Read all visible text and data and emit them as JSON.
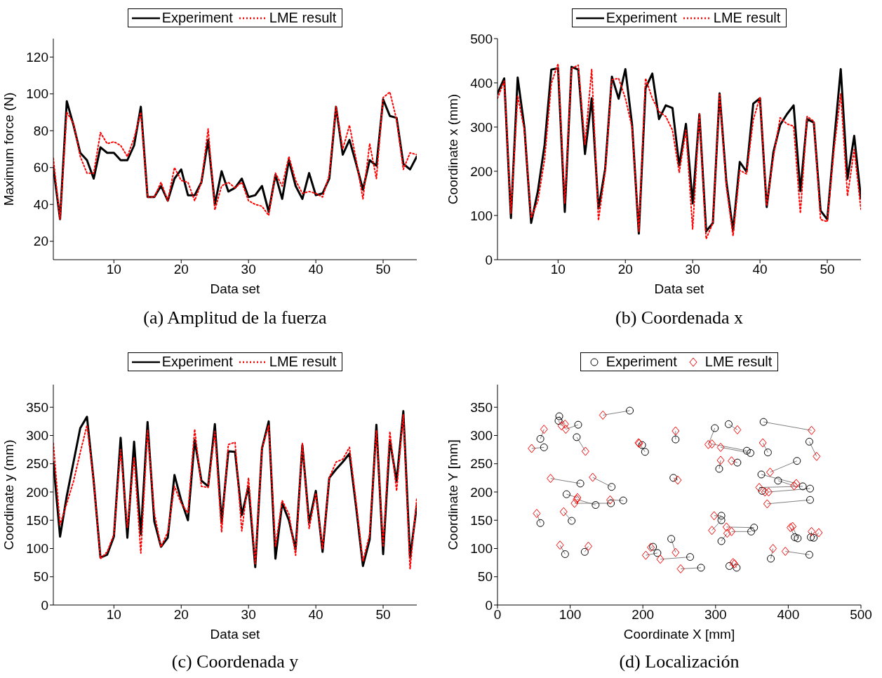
{
  "chart_data": [
    {
      "type": "line",
      "title": "(a) Amplitud de la fuerza",
      "xlabel": "Data set",
      "ylabel": "Maximum force (N)",
      "x": [
        1,
        2,
        3,
        4,
        5,
        6,
        7,
        8,
        9,
        10,
        11,
        12,
        13,
        14,
        15,
        16,
        17,
        18,
        19,
        20,
        21,
        22,
        23,
        24,
        25,
        26,
        27,
        28,
        29,
        30,
        31,
        32,
        33,
        34,
        35,
        36,
        37,
        38,
        39,
        40,
        41,
        42,
        43,
        44,
        45,
        46,
        47,
        48,
        49,
        50,
        51,
        52,
        53,
        54,
        55
      ],
      "series": [
        {
          "name": "Experiment",
          "color": "#000000",
          "line_style": "solid",
          "values": [
            60,
            32,
            96,
            83,
            68,
            64,
            54,
            71,
            68,
            68,
            64,
            64,
            72,
            93,
            44,
            44,
            50,
            42,
            54,
            59,
            45,
            45,
            52,
            75,
            40,
            58,
            47,
            49,
            54,
            44,
            45,
            50,
            36,
            56,
            43,
            64,
            50,
            43,
            57,
            45,
            46,
            54,
            93,
            67,
            75,
            62,
            48,
            64,
            61,
            97,
            88,
            87,
            62,
            59,
            66
          ]
        },
        {
          "name": "LME result",
          "color": "#ff0000",
          "line_style": "dotted",
          "values": [
            65,
            32,
            90,
            84,
            66,
            57,
            57,
            79,
            73,
            74,
            72,
            66,
            76,
            90,
            44,
            44,
            52,
            42,
            60,
            53,
            52,
            42,
            52,
            81,
            37,
            50,
            52,
            49,
            52,
            42,
            40,
            39,
            34,
            57,
            50,
            66,
            53,
            46,
            47,
            46,
            44,
            56,
            93,
            70,
            83,
            64,
            43,
            73,
            54,
            98,
            101,
            86,
            59,
            68,
            67
          ]
        }
      ],
      "xlim": [
        1,
        55
      ],
      "xticks": [
        10,
        20,
        30,
        40,
        50
      ],
      "ylim": [
        10,
        130
      ],
      "yticks": [
        20,
        40,
        60,
        80,
        100,
        120
      ],
      "grid": false,
      "legend": "top"
    },
    {
      "type": "line",
      "title": "(b) Coordenada x",
      "xlabel": "Data set",
      "ylabel": "Coordinate x (mm)",
      "x": [
        1,
        2,
        3,
        4,
        5,
        6,
        7,
        8,
        9,
        10,
        11,
        12,
        13,
        14,
        15,
        16,
        17,
        18,
        19,
        20,
        21,
        22,
        23,
        24,
        25,
        26,
        27,
        28,
        29,
        30,
        31,
        32,
        33,
        34,
        35,
        36,
        37,
        38,
        39,
        40,
        41,
        42,
        43,
        44,
        45,
        46,
        47,
        48,
        49,
        50,
        51,
        52,
        53,
        54,
        55
      ],
      "series": [
        {
          "name": "Experiment",
          "color": "#000000",
          "line_style": "solid",
          "values": [
            376,
            410,
            94,
            412,
            299,
            83,
            155,
            260,
            430,
            433,
            108,
            436,
            430,
            239,
            365,
            116,
            205,
            414,
            364,
            431,
            305,
            59,
            388,
            421,
            318,
            349,
            343,
            213,
            307,
            127,
            329,
            64,
            83,
            376,
            177,
            66,
            221,
            199,
            353,
            365,
            119,
            244,
            305,
            329,
            349,
            155,
            318,
            310,
            111,
            91,
            266,
            431,
            183,
            280,
            138
          ]
        },
        {
          "name": "LME result",
          "color": "#ff0000",
          "line_style": "dotted",
          "values": [
            365,
            404,
            105,
            371,
            293,
            94,
            133,
            227,
            399,
            443,
            127,
            432,
            440,
            260,
            431,
            89,
            199,
            407,
            410,
            365,
            299,
            64,
            410,
            365,
            335,
            324,
            293,
            197,
            293,
            69,
            329,
            47,
            83,
            376,
            166,
            54,
            202,
            194,
            316,
            368,
            122,
            233,
            321,
            307,
            302,
            105,
            324,
            313,
            91,
            86,
            249,
            376,
            144,
            249,
            114
          ]
        }
      ],
      "xlim": [
        1,
        55
      ],
      "xticks": [
        10,
        20,
        30,
        40,
        50
      ],
      "ylim": [
        0,
        500
      ],
      "yticks": [
        0,
        100,
        200,
        300,
        400,
        500
      ],
      "grid": false,
      "legend": "top"
    },
    {
      "type": "line",
      "title": "(c) Coordenada y",
      "xlabel": "Data set",
      "ylabel": "Coordinate y (mm)",
      "x": [
        1,
        2,
        3,
        4,
        5,
        6,
        7,
        8,
        9,
        10,
        11,
        12,
        13,
        14,
        15,
        16,
        17,
        18,
        19,
        20,
        21,
        22,
        23,
        24,
        25,
        26,
        27,
        28,
        29,
        30,
        31,
        32,
        33,
        34,
        35,
        36,
        37,
        38,
        39,
        40,
        41,
        42,
        43,
        44,
        45,
        46,
        47,
        48,
        49,
        50,
        51,
        52,
        53,
        54,
        55
      ],
      "series": [
        {
          "name": "Experiment",
          "color": "#000000",
          "line_style": "solid",
          "values": [
            253,
            121,
            193,
            253,
            313,
            333,
            219,
            84,
            89,
            121,
            296,
            119,
            289,
            125,
            324,
            148,
            103,
            119,
            230,
            185,
            150,
            292,
            220,
            210,
            320,
            146,
            272,
            271,
            159,
            210,
            67,
            277,
            325,
            82,
            180,
            150,
            99,
            283,
            146,
            202,
            94,
            225,
            240,
            253,
            268,
            172,
            69,
            116,
            319,
            90,
            292,
            219,
            343,
            84,
            176
          ]
        },
        {
          "name": "LME result",
          "color": "#ff0000",
          "line_style": "dotted",
          "values": [
            286,
            142,
            180,
            219,
            270,
            318,
            219,
            82,
            94,
            125,
            275,
            137,
            262,
            92,
            309,
            163,
            103,
            129,
            210,
            180,
            163,
            311,
            210,
            208,
            307,
            129,
            284,
            288,
            131,
            225,
            73,
            277,
            318,
            103,
            185,
            161,
            88,
            286,
            135,
            198,
            99,
            225,
            253,
            258,
            279,
            180,
            77,
            125,
            309,
            103,
            307,
            202,
            337,
            64,
            189
          ]
        }
      ],
      "xlim": [
        1,
        55
      ],
      "xticks": [
        10,
        20,
        30,
        40,
        50
      ],
      "ylim": [
        0,
        390
      ],
      "yticks": [
        0,
        50,
        100,
        150,
        200,
        250,
        300,
        350
      ],
      "grid": false,
      "legend": "top"
    },
    {
      "type": "scatter",
      "title": "(d) Localización",
      "xlabel": "Coordinate X [mm]",
      "ylabel": "Coordinate Y [mm]",
      "series": [
        {
          "name": "Experiment",
          "color": "#000000",
          "marker": "circle",
          "x": [
            182,
            85,
            84,
            111,
            59,
            64,
            109,
            199,
            203,
            114,
            157,
            95,
            156,
            135,
            173,
            59,
            102,
            93,
            120,
            214,
            220,
            265,
            239,
            245,
            242,
            280,
            299,
            318,
            343,
            348,
            305,
            330,
            366,
            372,
            429,
            412,
            363,
            386,
            420,
            430,
            364,
            430,
            308,
            308,
            353,
            349,
            308,
            409,
            413,
            431,
            435,
            376,
            429,
            319,
            329
          ],
          "values": [
            344,
            334,
            326,
            319,
            294,
            279,
            297,
            283,
            271,
            215,
            209,
            196,
            180,
            177,
            185,
            145,
            149,
            90,
            94,
            103,
            92,
            85,
            117,
            293,
            225,
            66,
            313,
            320,
            273,
            269,
            241,
            252,
            324,
            270,
            289,
            255,
            231,
            220,
            210,
            206,
            202,
            186,
            158,
            150,
            137,
            130,
            113,
            120,
            118,
            120,
            119,
            82,
            89,
            69,
            66
          ]
        },
        {
          "name": "LME result",
          "color": "#ff0000",
          "marker": "diamond",
          "x": [
            145,
            93,
            88,
            94,
            64,
            47,
            121,
            194,
            195,
            73,
            131,
            110,
            106,
            109,
            155,
            54,
            91,
            86,
            125,
            211,
            204,
            224,
            245,
            245,
            248,
            252,
            290,
            330,
            295,
            307,
            307,
            322,
            432,
            365,
            439,
            375,
            411,
            408,
            360,
            373,
            368,
            371,
            298,
            295,
            315,
            322,
            316,
            403,
            406,
            432,
            442,
            379,
            396,
            324,
            326
          ],
          "values": [
            336,
            320,
            317,
            311,
            311,
            277,
            272,
            287,
            286,
            224,
            226,
            190,
            180,
            187,
            186,
            162,
            165,
            106,
            104,
            102,
            88,
            81,
            93,
            308,
            221,
            64,
            284,
            310,
            285,
            279,
            256,
            255,
            309,
            287,
            263,
            235,
            215,
            211,
            208,
            200,
            200,
            179,
            158,
            132,
            138,
            130,
            127,
            137,
            139,
            130,
            128,
            100,
            95,
            75,
            73
          ]
        }
      ],
      "xlim": [
        0,
        500
      ],
      "xticks": [
        0,
        100,
        200,
        300,
        400,
        500
      ],
      "ylim": [
        0,
        390
      ],
      "yticks": [
        0,
        50,
        100,
        150,
        200,
        250,
        300,
        350
      ],
      "grid": false,
      "legend": "top"
    }
  ]
}
